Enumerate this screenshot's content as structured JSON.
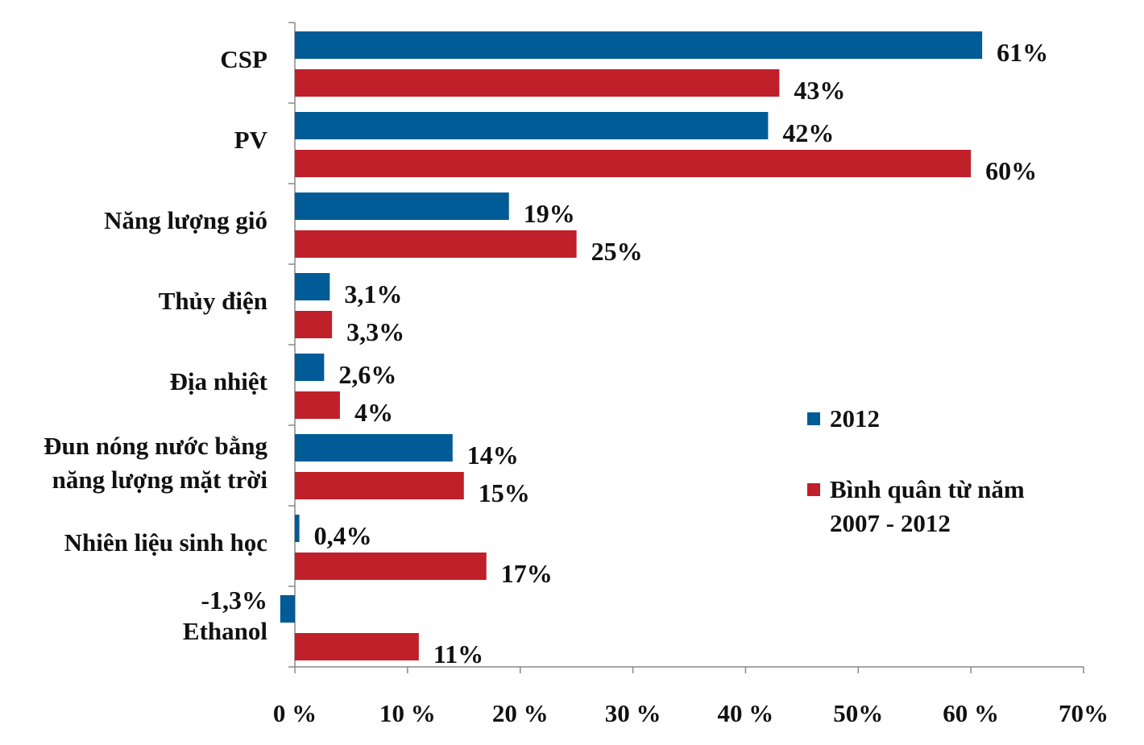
{
  "chart_data": {
    "type": "bar",
    "orientation": "horizontal",
    "categories": [
      "CSP",
      "PV",
      "Năng lượng gió",
      "Thủy điện",
      "Địa nhiệt",
      "Đun nóng nước bằng năng lượng mặt trời",
      "Nhiên liệu sinh học",
      "Ethanol"
    ],
    "category_lines": [
      [
        "CSP"
      ],
      [
        "PV"
      ],
      [
        "Năng lượng gió"
      ],
      [
        "Thủy điện"
      ],
      [
        "Địa nhiệt"
      ],
      [
        "Đun nóng nước bằng",
        "năng lượng mặt trời"
      ],
      [
        "Nhiên liệu sinh học"
      ],
      [
        "Ethanol"
      ]
    ],
    "series": [
      {
        "name": "2012",
        "color": "#005b96",
        "values": [
          61,
          42,
          19,
          3.1,
          2.6,
          14,
          0.4,
          -1.3
        ],
        "labels": [
          "61%",
          "42%",
          "19%",
          "3,1%",
          "2,6%",
          "14%",
          "0,4%",
          "-1,3%"
        ]
      },
      {
        "name": "Bình quân từ năm 2007 - 2012",
        "name_lines": [
          "Bình quân từ năm",
          "2007 - 2012"
        ],
        "color": "#c0202a",
        "values": [
          43,
          60,
          25,
          3.3,
          4,
          15,
          17,
          11
        ],
        "labels": [
          "43%",
          "60%",
          "25%",
          "3,3%",
          "4%",
          "15%",
          "17%",
          "11%"
        ]
      }
    ],
    "xlim": [
      0,
      70
    ],
    "xticks": [
      0,
      10,
      20,
      30,
      40,
      50,
      60,
      70
    ],
    "xtick_labels": [
      "0 %",
      "10 %",
      "20 %",
      "30 %",
      "40 %",
      "50%",
      "60 %",
      "70%"
    ],
    "legend": "right",
    "grid": false
  }
}
